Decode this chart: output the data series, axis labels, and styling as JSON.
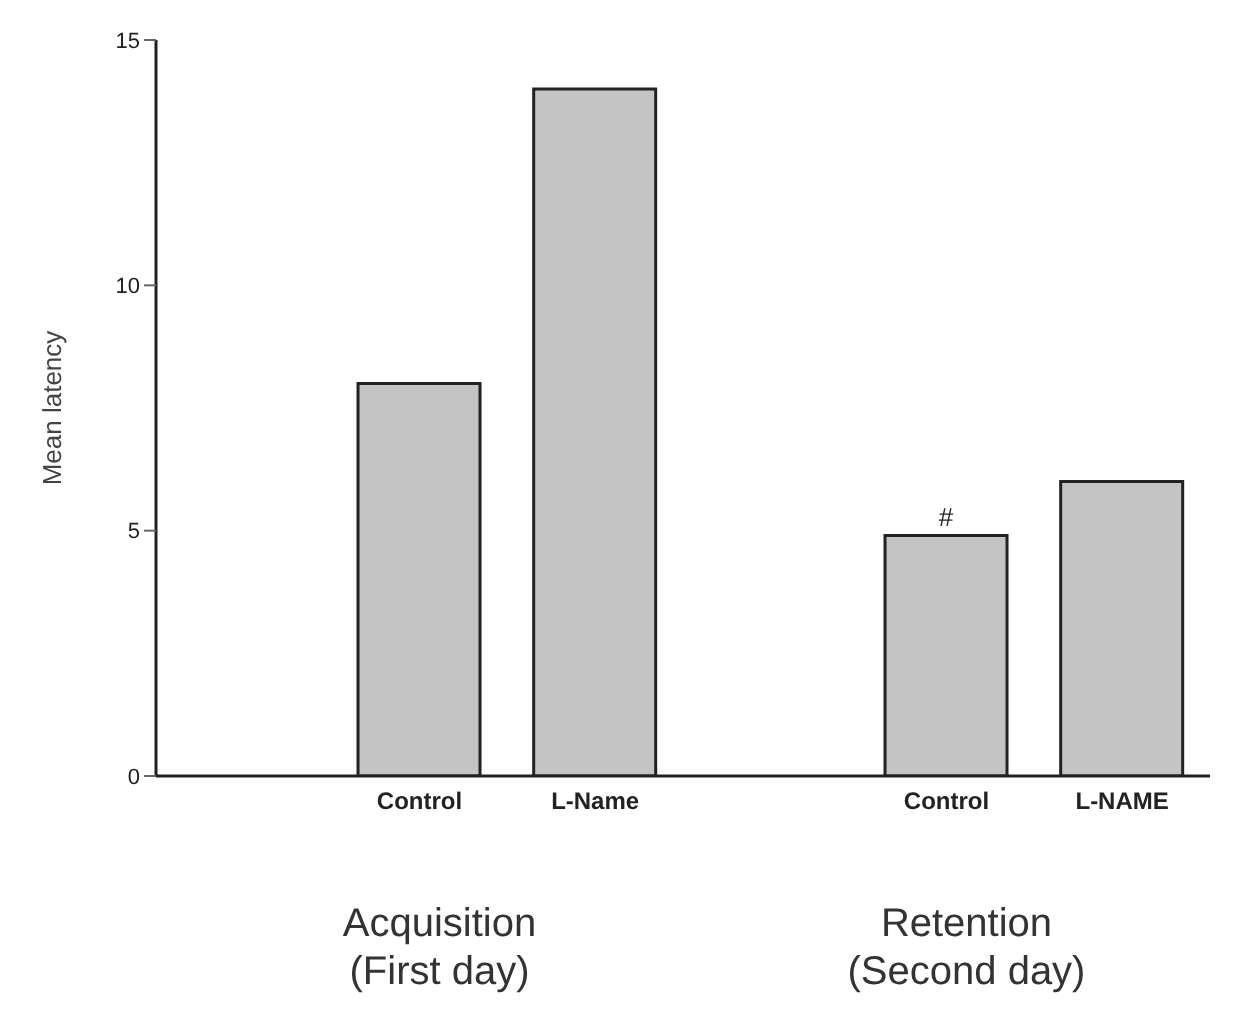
{
  "chart_data": {
    "type": "bar",
    "ylabel": "Mean latency",
    "categories": [
      null,
      "Control",
      "L-Name",
      null,
      "Control",
      "L-NAME"
    ],
    "values": [
      null,
      8,
      14,
      null,
      4.9,
      6
    ],
    "value_labels": [
      null,
      null,
      null,
      null,
      "#",
      null
    ],
    "color": "#c4c4c4",
    "ylim": [
      0,
      15
    ],
    "yticks": [
      0,
      5,
      10,
      15
    ],
    "grid": false,
    "legend": false,
    "annotations": [
      "Acquisition\n(First day)",
      "Retention\n(Second day)"
    ]
  }
}
